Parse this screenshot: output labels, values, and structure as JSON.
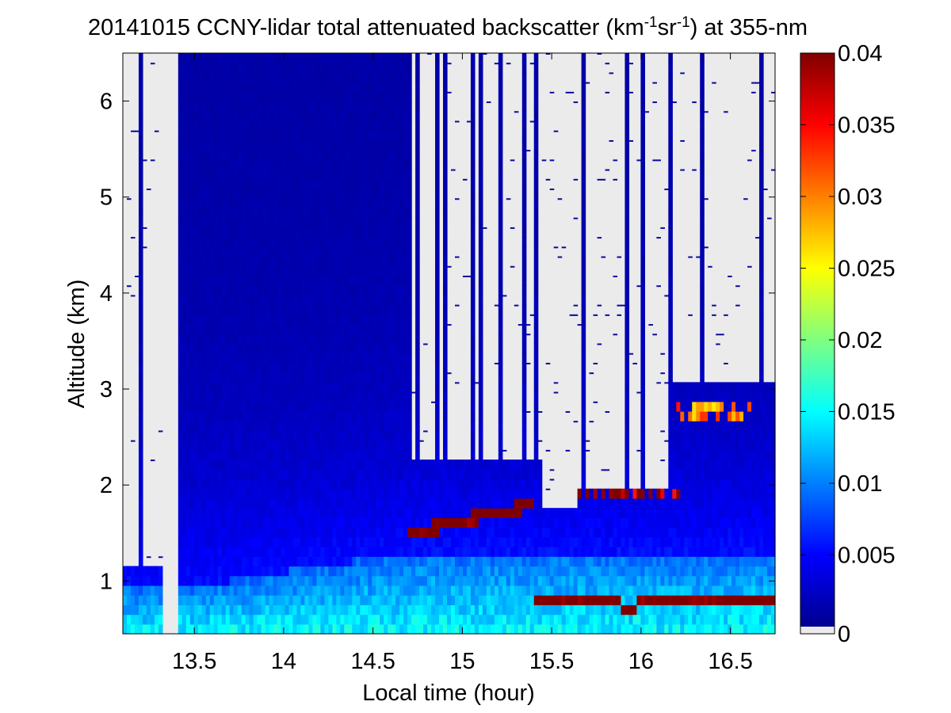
{
  "chart_data": {
    "type": "heatmap",
    "title": {
      "prefix": "20141015 CCNY-lidar total attenuated backscatter (km",
      "sup1": "-1",
      "middle": "sr",
      "sup2": "-1",
      "suffix": ") at 355-nm"
    },
    "xlabel": "Local time (hour)",
    "ylabel": "Altitude (km)",
    "xlim": [
      13.1,
      16.75
    ],
    "ylim": [
      0.45,
      6.5
    ],
    "xticks": [
      "13.5",
      "14",
      "14.5",
      "15",
      "15.5",
      "16",
      "16.5"
    ],
    "yticks": [
      "1",
      "2",
      "3",
      "4",
      "5",
      "6"
    ],
    "grid": false,
    "colorbar": {
      "ticks": [
        "0",
        "0.005",
        "0.01",
        "0.015",
        "0.02",
        "0.025",
        "0.03",
        "0.035",
        "0.04"
      ],
      "range": [
        0,
        0.04
      ],
      "below_range_color": "#ebebeb",
      "colormap": "jet"
    },
    "background_color": "#ebebeb",
    "data_gaps_hour": [
      [
        13.33,
        13.4
      ]
    ],
    "features": [
      {
        "name": "boundary-layer aerosol",
        "x": [
          13.1,
          16.75
        ],
        "y_top": [
          1.0,
          0.9
        ],
        "backscatter": 0.014
      },
      {
        "name": "cloud layer",
        "x": [
          14.7,
          15.4
        ],
        "y": [
          1.5,
          1.8
        ],
        "backscatter": 0.04
      },
      {
        "name": "low cloud layer",
        "x": [
          15.4,
          16.75
        ],
        "y": [
          0.75,
          0.9
        ],
        "backscatter": 0.04
      },
      {
        "name": "cloud layer",
        "x": [
          15.65,
          16.3
        ],
        "y": [
          1.8,
          1.95
        ],
        "backscatter": 0.04
      },
      {
        "name": "cloud layer",
        "x": [
          16.2,
          16.75
        ],
        "y": [
          2.6,
          2.9
        ],
        "backscatter": 0.035
      }
    ]
  }
}
